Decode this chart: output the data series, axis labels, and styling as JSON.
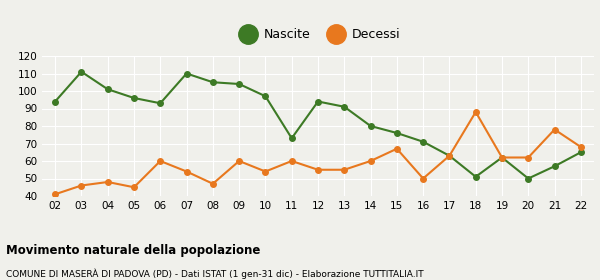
{
  "years": [
    "02",
    "03",
    "04",
    "05",
    "06",
    "07",
    "08",
    "09",
    "10",
    "11",
    "12",
    "13",
    "14",
    "15",
    "16",
    "17",
    "18",
    "19",
    "20",
    "21",
    "22"
  ],
  "nascite": [
    94,
    111,
    101,
    96,
    93,
    110,
    105,
    104,
    97,
    73,
    94,
    91,
    80,
    76,
    71,
    63,
    51,
    62,
    50,
    57,
    65
  ],
  "decessi": [
    41,
    46,
    48,
    45,
    60,
    54,
    47,
    60,
    54,
    60,
    55,
    55,
    60,
    67,
    50,
    63,
    88,
    62,
    62,
    78,
    68
  ],
  "nascite_color": "#3d7a25",
  "decessi_color": "#e8781e",
  "background_color": "#f0f0eb",
  "grid_color": "#ffffff",
  "ylim": [
    40,
    120
  ],
  "yticks": [
    40,
    50,
    60,
    70,
    80,
    90,
    100,
    110,
    120
  ],
  "legend_labels": [
    "Nascite",
    "Decessi"
  ],
  "title": "Movimento naturale della popolazione",
  "subtitle": "COMUNE DI MASERÀ DI PADOVA (PD) - Dati ISTAT (1 gen-31 dic) - Elaborazione TUTTITALIA.IT",
  "marker_size": 4,
  "line_width": 1.5,
  "legend_marker_size": 14
}
